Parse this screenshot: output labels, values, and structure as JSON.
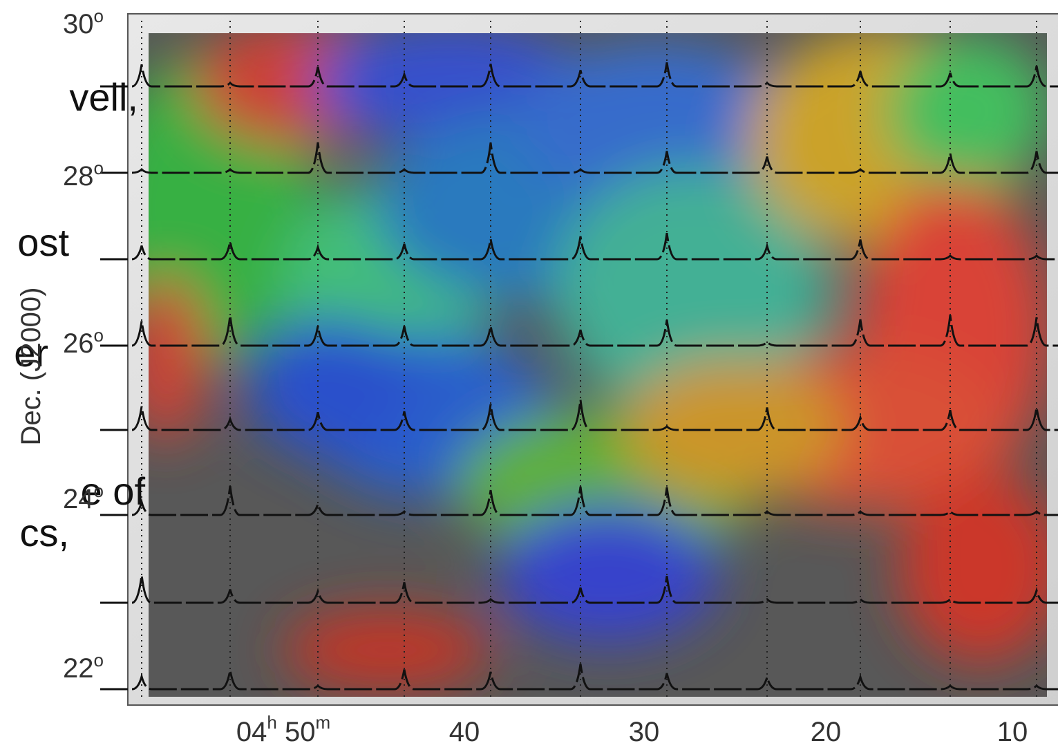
{
  "slide_text": [
    "vell,",
    "ost",
    "er",
    "e of",
    "cs,"
  ],
  "figure": {
    "y_axis_title": "Dec.  (J2000)",
    "y_labels": [
      {
        "base": "30",
        "sup": "o"
      },
      {
        "base": "28",
        "sup": "o"
      },
      {
        "base": "26",
        "sup": "o"
      },
      {
        "base": "24",
        "sup": "o"
      },
      {
        "base": "22",
        "sup": "o"
      }
    ],
    "x_labels": [
      {
        "parts": [
          "04",
          "h",
          " 50",
          "m"
        ]
      },
      {
        "parts": [
          "40"
        ]
      },
      {
        "parts": [
          "30"
        ]
      },
      {
        "parts": [
          "20"
        ]
      },
      {
        "parts": [
          "10"
        ]
      }
    ]
  }
}
